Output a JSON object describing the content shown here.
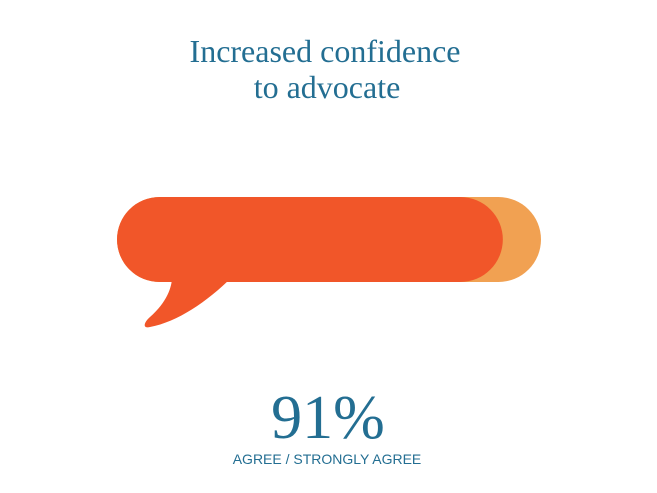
{
  "chart_data": {
    "type": "progress",
    "title": [
      "Increased confidence",
      "to advocate"
    ],
    "values": [
      91
    ],
    "value_labels": [
      "91%"
    ],
    "label": "AGREE / STRONGLY AGREE",
    "xlim": [
      0,
      100
    ],
    "color": "#f15629",
    "track_color": "#f1a152"
  }
}
